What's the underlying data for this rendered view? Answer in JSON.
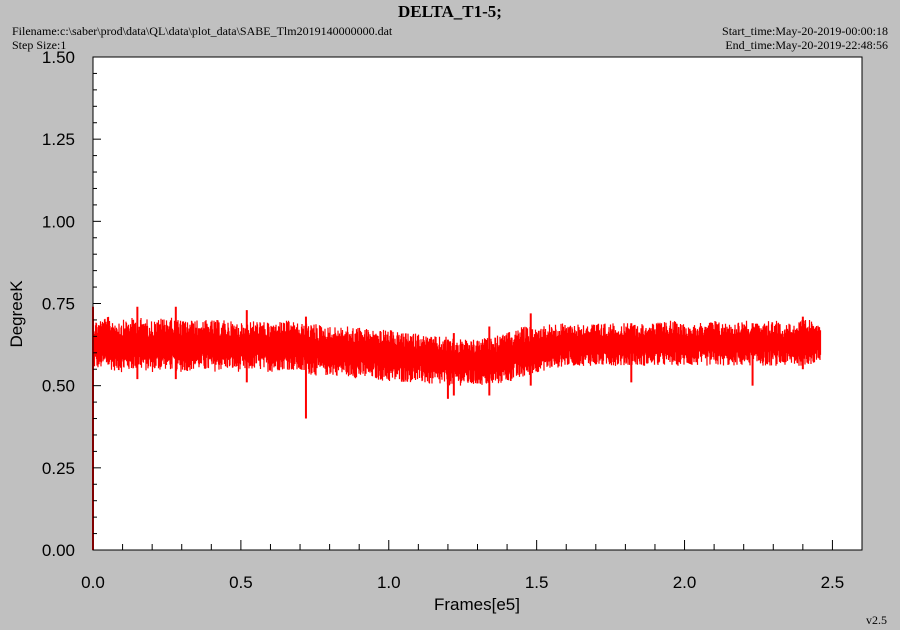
{
  "header": {
    "title": "DELTA_T1-5;",
    "filename": "Filename:c:\\saber\\prod\\data\\QL\\data\\plot_data\\SABE_Tlm2019140000000.dat",
    "step_size": "Step Size:1",
    "start_time": "Start_time:May-20-2019-00:00:18",
    "end_time": "End_time:May-20-2019-22:48:56"
  },
  "footer": {
    "version": "v2.5"
  },
  "colors": {
    "series": "#ff0000",
    "background": "#c0c0c0",
    "plot_bg": "#ffffff"
  },
  "chart_data": {
    "type": "line",
    "xlabel": "Frames[e5]",
    "ylabel": "DegreeK",
    "xlim": [
      0,
      2.6
    ],
    "ylim": [
      0,
      1.5
    ],
    "x_ticks": [
      "0.0",
      "0.5",
      "1.0",
      "1.5",
      "2.0",
      "2.5"
    ],
    "y_ticks": [
      "0.00",
      "0.25",
      "0.50",
      "0.75",
      "1.00",
      "1.25",
      "1.50"
    ],
    "grid": false,
    "series": [
      {
        "color": "#ff0000",
        "band": [
          [
            0.0,
            0.55,
            0.7
          ],
          [
            0.05,
            0.55,
            0.71
          ],
          [
            0.1,
            0.54,
            0.7
          ],
          [
            0.15,
            0.55,
            0.71
          ],
          [
            0.2,
            0.54,
            0.7
          ],
          [
            0.25,
            0.55,
            0.71
          ],
          [
            0.3,
            0.54,
            0.7
          ],
          [
            0.35,
            0.55,
            0.7
          ],
          [
            0.4,
            0.54,
            0.7
          ],
          [
            0.45,
            0.55,
            0.7
          ],
          [
            0.5,
            0.54,
            0.69
          ],
          [
            0.55,
            0.55,
            0.7
          ],
          [
            0.6,
            0.54,
            0.69
          ],
          [
            0.65,
            0.55,
            0.7
          ],
          [
            0.7,
            0.54,
            0.69
          ],
          [
            0.75,
            0.53,
            0.69
          ],
          [
            0.8,
            0.53,
            0.68
          ],
          [
            0.85,
            0.53,
            0.68
          ],
          [
            0.9,
            0.52,
            0.68
          ],
          [
            0.95,
            0.52,
            0.67
          ],
          [
            1.0,
            0.51,
            0.67
          ],
          [
            1.05,
            0.51,
            0.66
          ],
          [
            1.1,
            0.51,
            0.66
          ],
          [
            1.15,
            0.5,
            0.65
          ],
          [
            1.2,
            0.5,
            0.65
          ],
          [
            1.25,
            0.5,
            0.64
          ],
          [
            1.3,
            0.5,
            0.64
          ],
          [
            1.35,
            0.5,
            0.65
          ],
          [
            1.4,
            0.51,
            0.66
          ],
          [
            1.45,
            0.52,
            0.68
          ],
          [
            1.5,
            0.54,
            0.68
          ],
          [
            1.55,
            0.55,
            0.69
          ],
          [
            1.6,
            0.56,
            0.69
          ],
          [
            1.65,
            0.56,
            0.69
          ],
          [
            1.7,
            0.56,
            0.69
          ],
          [
            1.75,
            0.56,
            0.69
          ],
          [
            1.8,
            0.56,
            0.69
          ],
          [
            1.85,
            0.56,
            0.69
          ],
          [
            1.9,
            0.56,
            0.69
          ],
          [
            1.95,
            0.56,
            0.7
          ],
          [
            2.0,
            0.56,
            0.69
          ],
          [
            2.05,
            0.56,
            0.69
          ],
          [
            2.1,
            0.56,
            0.7
          ],
          [
            2.15,
            0.56,
            0.69
          ],
          [
            2.2,
            0.56,
            0.7
          ],
          [
            2.25,
            0.56,
            0.69
          ],
          [
            2.3,
            0.56,
            0.7
          ],
          [
            2.35,
            0.56,
            0.69
          ],
          [
            2.4,
            0.56,
            0.7
          ],
          [
            2.46,
            0.57,
            0.7
          ]
        ],
        "spikes": [
          [
            0.0,
            0.0,
            0.74
          ],
          [
            0.72,
            0.4,
            0.71
          ],
          [
            1.22,
            0.47,
            0.66
          ],
          [
            1.48,
            0.5,
            0.72
          ],
          [
            1.2,
            0.46,
            0.64
          ],
          [
            1.34,
            0.47,
            0.68
          ],
          [
            2.23,
            0.5,
            0.69
          ],
          [
            1.82,
            0.51,
            0.69
          ],
          [
            2.4,
            0.55,
            0.71
          ],
          [
            0.15,
            0.52,
            0.74
          ],
          [
            0.28,
            0.52,
            0.74
          ],
          [
            0.52,
            0.51,
            0.73
          ]
        ],
        "x_start": 0.0,
        "x_end": 2.46
      }
    ]
  }
}
